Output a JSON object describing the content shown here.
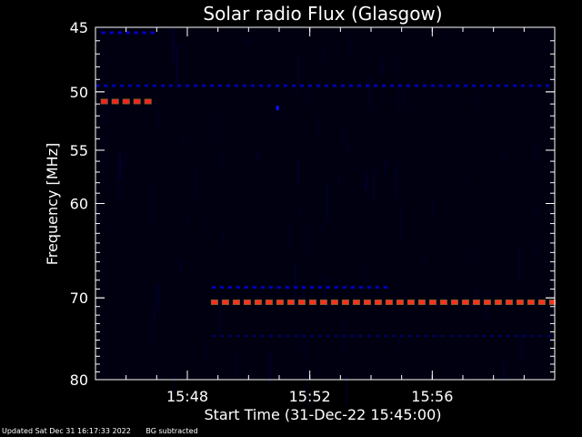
{
  "chart_data": {
    "type": "heatmap",
    "title": "Solar radio Flux (Glasgow)",
    "xlabel": "Start Time (31-Dec-22 15:45:00)",
    "ylabel": "Frequency [MHz]",
    "x_ticks": [
      "15:48",
      "15:52",
      "15:56"
    ],
    "x_tick_minutes": [
      48,
      52,
      56
    ],
    "xlim_minutes": [
      45,
      60
    ],
    "y_ticks": [
      45,
      50,
      55,
      60,
      70,
      80
    ],
    "ylim": [
      45,
      80
    ],
    "y_scale": "log",
    "grid": false,
    "background_color": "#000010",
    "features": [
      {
        "freq": 45.4,
        "start_min": 45.2,
        "end_min": 47.0,
        "color": "#0000d0",
        "intensity": "medium"
      },
      {
        "freq": 49.5,
        "start_min": 45.0,
        "end_min": 60.0,
        "color": "#0000b0",
        "intensity": "medium"
      },
      {
        "freq": 50.8,
        "start_min": 45.2,
        "end_min": 47.0,
        "color": "#ff2020",
        "intensity": "high"
      },
      {
        "freq": 51.3,
        "start_min": 50.9,
        "end_min": 51.0,
        "color": "#1010ff",
        "intensity": "medium"
      },
      {
        "freq": 68.8,
        "start_min": 48.8,
        "end_min": 54.7,
        "color": "#0000c0",
        "intensity": "medium"
      },
      {
        "freq": 70.5,
        "start_min": 48.8,
        "end_min": 60.0,
        "color": "#ff3020",
        "intensity": "high"
      },
      {
        "freq": 74.5,
        "start_min": 48.8,
        "end_min": 60.0,
        "color": "#00006a",
        "intensity": "low"
      }
    ]
  },
  "footer": {
    "updated": "Updated Sat Dec 31 16:17:33 2022",
    "note": "BG subtracted"
  },
  "colors": {
    "axis": "#ffffff",
    "text": "#ffffff"
  }
}
